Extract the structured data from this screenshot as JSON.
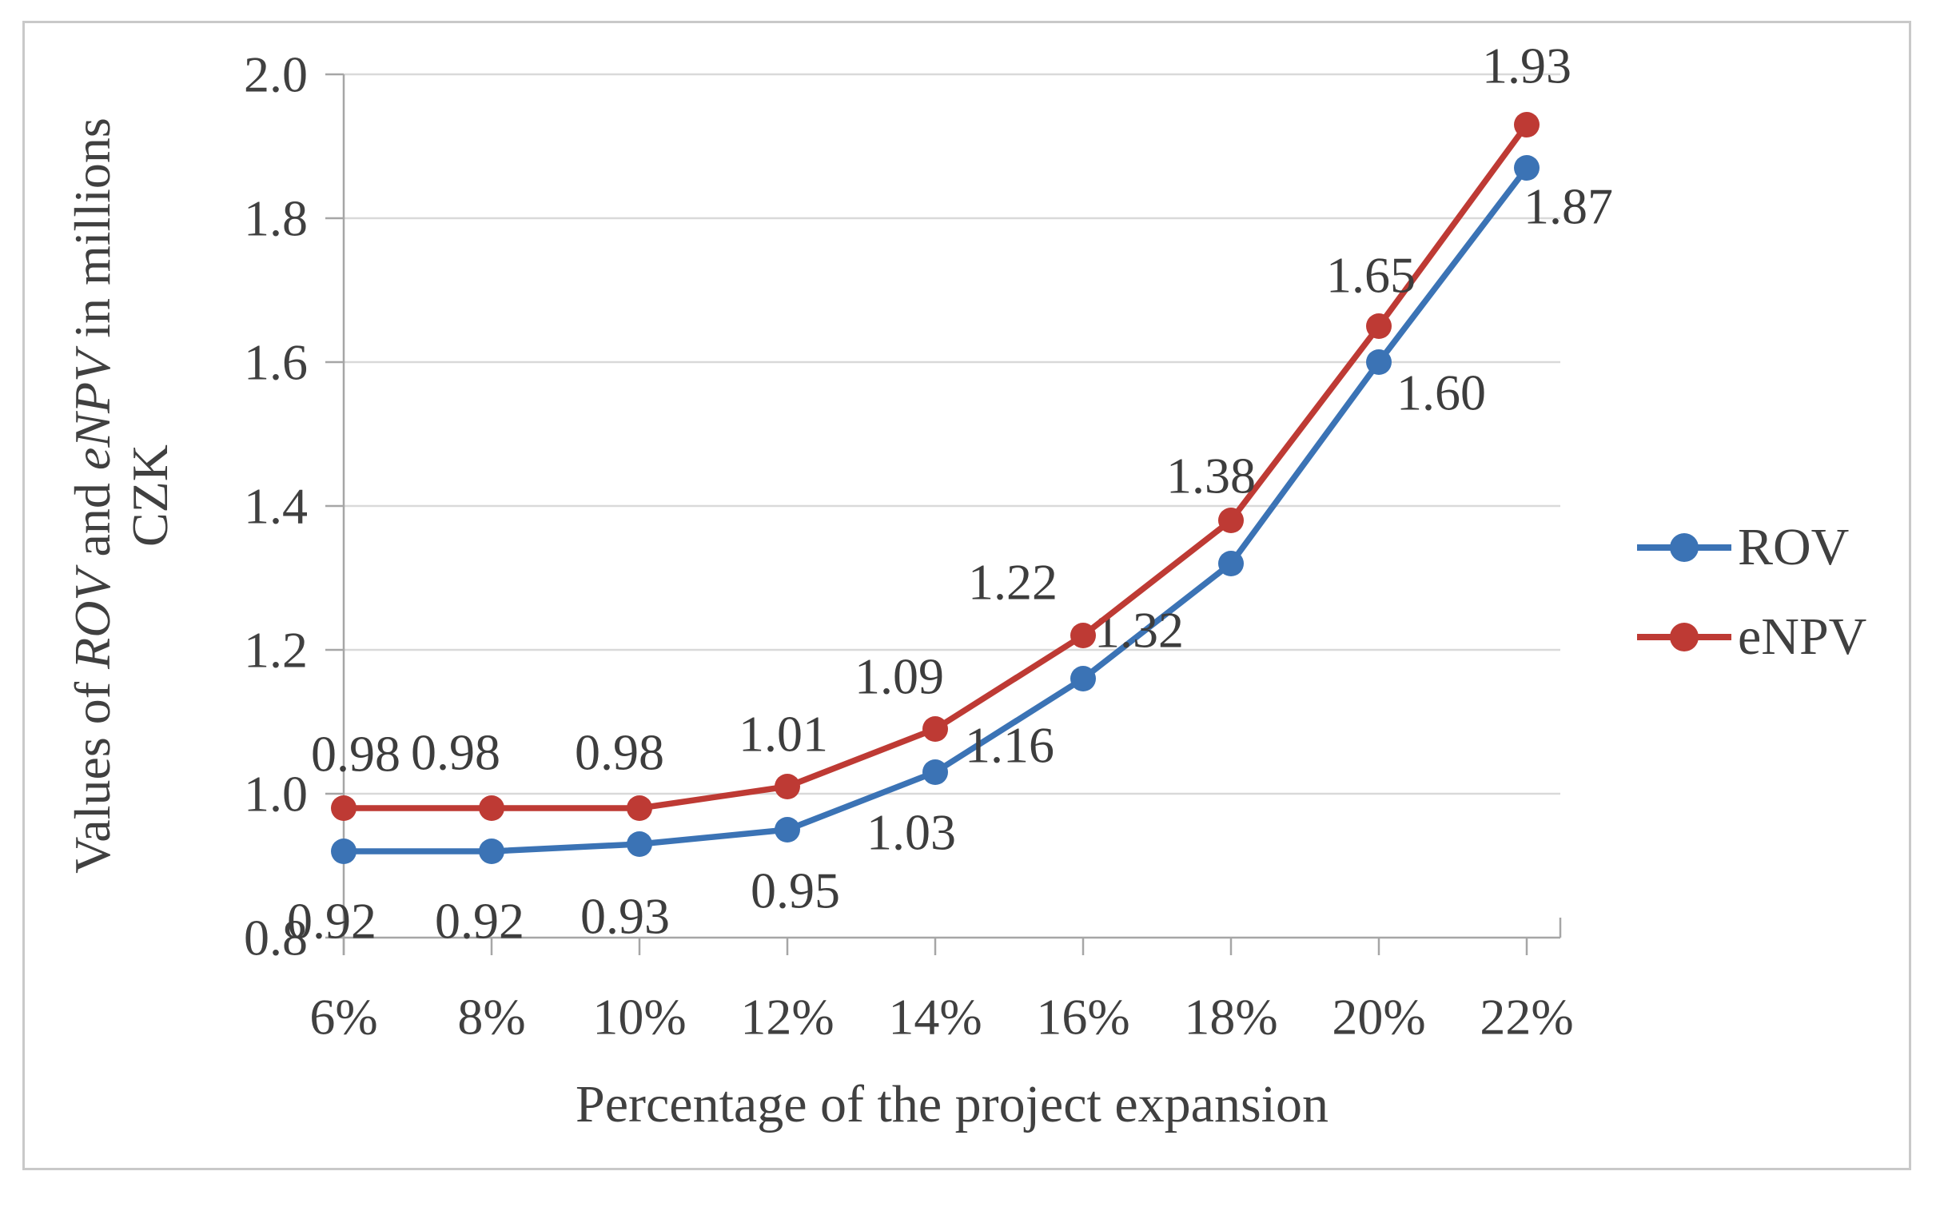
{
  "figure": {
    "x_axis_title": "Percentage of the project expansion",
    "y_axis_title": {
      "pre": "Values of ",
      "italic1": "ROV",
      "mid": " and ",
      "italic2": "eNPV",
      "post": " in millions",
      "line2": "CZK"
    },
    "text_color": "#404040",
    "border_color": "#c9c9c9"
  },
  "chart_data": {
    "type": "line",
    "title": "",
    "xlabel": "Percentage of the project expansion",
    "ylabel": "Values of ROV and eNPV in millions CZK",
    "categories": [
      "6%",
      "8%",
      "10%",
      "12%",
      "14%",
      "16%",
      "18%",
      "20%",
      "22%"
    ],
    "series": [
      {
        "name": "ROV",
        "color": "#3b73b5",
        "values": [
          0.92,
          0.92,
          0.93,
          0.95,
          1.03,
          1.16,
          1.32,
          1.6,
          1.87
        ],
        "labels": [
          "0.92",
          "0.92",
          "0.93",
          "0.95",
          "1.03",
          "1.16",
          "1.32",
          "1.60",
          "1.87"
        ],
        "label_offsets": [
          [
            -15,
            87
          ],
          [
            -15,
            87
          ],
          [
            -18,
            90
          ],
          [
            10,
            76
          ],
          [
            -30,
            75
          ],
          [
            -92,
            83
          ],
          [
            -115,
            83
          ],
          [
            78,
            38
          ],
          [
            52,
            48
          ]
        ]
      },
      {
        "name": "eNPV",
        "color": "#be3a34",
        "values": [
          0.98,
          0.98,
          0.98,
          1.01,
          1.09,
          1.22,
          1.38,
          1.65,
          1.93
        ],
        "labels": [
          "0.98",
          "0.98",
          "0.98",
          "1.01",
          "1.09",
          "1.22",
          "1.38",
          "1.65",
          "1.93"
        ],
        "label_offsets": [
          [
            15,
            -68
          ],
          [
            -45,
            -70
          ],
          [
            -25,
            -70
          ],
          [
            -5,
            -66
          ],
          [
            -45,
            -66
          ],
          [
            -88,
            -67
          ],
          [
            -25,
            -56
          ],
          [
            -10,
            -64
          ],
          [
            0,
            -74
          ]
        ]
      }
    ],
    "y_axis": {
      "min": 0.8,
      "max": 2.0,
      "step": 0.2,
      "tick_labels": [
        "0.8",
        "1.0",
        "1.2",
        "1.4",
        "1.6",
        "1.8",
        "2.0"
      ]
    },
    "grid": "horizontal",
    "legend_position": "right",
    "gridline_color": "#d9d9d9",
    "axis_color": "#a6a6a6",
    "ylim": [
      0.8,
      2.0
    ]
  }
}
